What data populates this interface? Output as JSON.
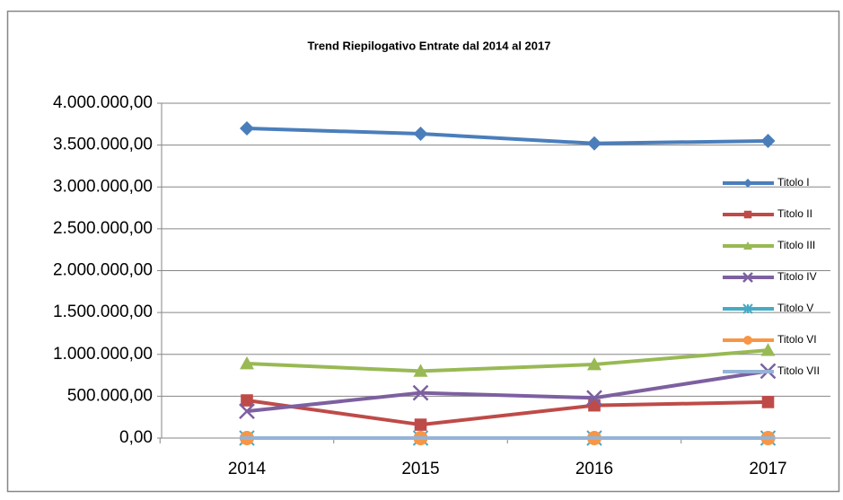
{
  "chart_data": {
    "type": "line",
    "title": "Trend Riepilogativo Entrate dal 2014 al 2017",
    "categories": [
      "2014",
      "2015",
      "2016",
      "2017"
    ],
    "series": [
      {
        "name": "Titolo I",
        "color": "#4a7ebb",
        "marker": "diamond",
        "values": [
          3700000,
          3635000,
          3520000,
          3550000
        ]
      },
      {
        "name": "Titolo II",
        "color": "#be4b48",
        "marker": "square",
        "values": [
          450000,
          160000,
          390000,
          430000
        ]
      },
      {
        "name": "Titolo III",
        "color": "#98b954",
        "marker": "triangle",
        "values": [
          890000,
          800000,
          880000,
          1050000
        ]
      },
      {
        "name": "Titolo IV",
        "color": "#7d60a0",
        "marker": "x",
        "values": [
          320000,
          540000,
          480000,
          800000
        ]
      },
      {
        "name": "Titolo V",
        "color": "#46aac5",
        "marker": "star",
        "values": [
          0,
          0,
          0,
          0
        ]
      },
      {
        "name": "Titolo VI",
        "color": "#f79646",
        "marker": "circle",
        "values": [
          0,
          0,
          0,
          0
        ]
      },
      {
        "name": "Titolo VII",
        "color": "#95b3d7",
        "marker": "dash",
        "values": [
          0,
          0,
          0,
          0
        ]
      }
    ],
    "ylim": [
      0,
      4000000
    ],
    "yticks": [
      {
        "value": 0,
        "label": "0,00"
      },
      {
        "value": 500000,
        "label": "500.000,00"
      },
      {
        "value": 1000000,
        "label": "1.000.000,00"
      },
      {
        "value": 1500000,
        "label": "1.500.000,00"
      },
      {
        "value": 2000000,
        "label": "2.000.000,00"
      },
      {
        "value": 2500000,
        "label": "2.500.000,00"
      },
      {
        "value": 3000000,
        "label": "3.000.000,00"
      },
      {
        "value": 3500000,
        "label": "3.500.000,00"
      },
      {
        "value": 4000000,
        "label": "4.000.000,00"
      }
    ],
    "grid": true,
    "legend": "right"
  }
}
